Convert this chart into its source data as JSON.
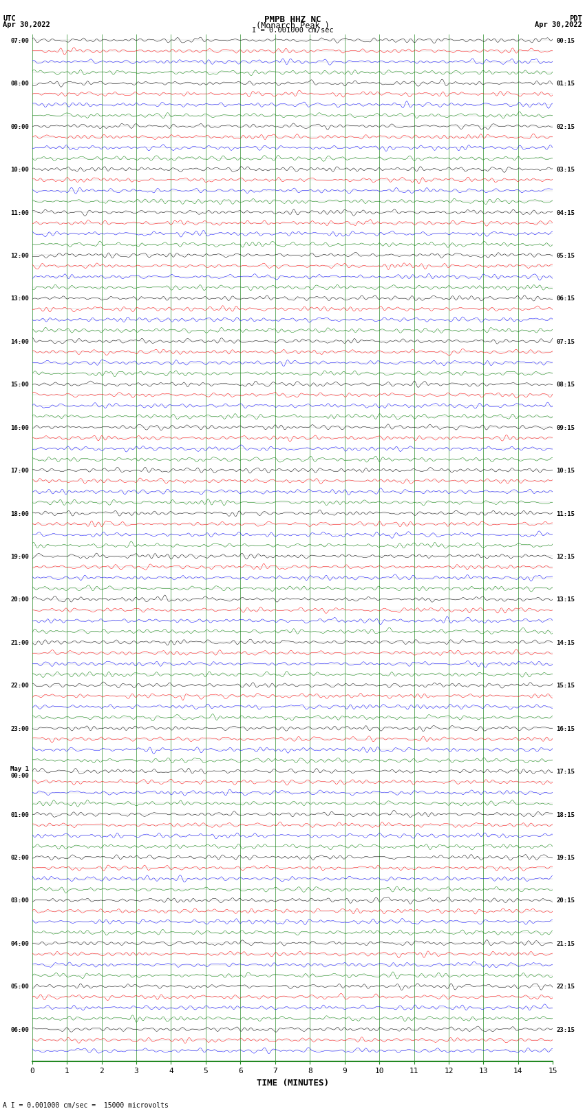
{
  "title_line1": "PMPB HHZ NC",
  "title_line2": "(Monarch Peak )",
  "scale_label": "I = 0.001000 cm/sec",
  "bottom_annotation": "A I = 0.001000 cm/sec =  15000 microvolts",
  "left_label": "UTC",
  "left_date": "Apr 30,2022",
  "right_label": "PDT",
  "right_date": "Apr 30,2022",
  "xlabel": "TIME (MINUTES)",
  "xlim": [
    0,
    15
  ],
  "xticks": [
    0,
    1,
    2,
    3,
    4,
    5,
    6,
    7,
    8,
    9,
    10,
    11,
    12,
    13,
    14,
    15
  ],
  "utc_times": [
    "07:00",
    "",
    "",
    "",
    "08:00",
    "",
    "",
    "",
    "09:00",
    "",
    "",
    "",
    "10:00",
    "",
    "",
    "",
    "11:00",
    "",
    "",
    "",
    "12:00",
    "",
    "",
    "",
    "13:00",
    "",
    "",
    "",
    "14:00",
    "",
    "",
    "",
    "15:00",
    "",
    "",
    "",
    "16:00",
    "",
    "",
    "",
    "17:00",
    "",
    "",
    "",
    "18:00",
    "",
    "",
    "",
    "19:00",
    "",
    "",
    "",
    "20:00",
    "",
    "",
    "",
    "21:00",
    "",
    "",
    "",
    "22:00",
    "",
    "",
    "",
    "23:00",
    "",
    "",
    "",
    "May 1\n00:00",
    "",
    "",
    "",
    "01:00",
    "",
    "",
    "",
    "02:00",
    "",
    "",
    "",
    "03:00",
    "",
    "",
    "",
    "04:00",
    "",
    "",
    "",
    "05:00",
    "",
    "",
    "",
    "06:00",
    "",
    ""
  ],
  "pdt_times": [
    "00:15",
    "",
    "",
    "",
    "01:15",
    "",
    "",
    "",
    "02:15",
    "",
    "",
    "",
    "03:15",
    "",
    "",
    "",
    "04:15",
    "",
    "",
    "",
    "05:15",
    "",
    "",
    "",
    "06:15",
    "",
    "",
    "",
    "07:15",
    "",
    "",
    "",
    "08:15",
    "",
    "",
    "",
    "09:15",
    "",
    "",
    "",
    "10:15",
    "",
    "",
    "",
    "11:15",
    "",
    "",
    "",
    "12:15",
    "",
    "",
    "",
    "13:15",
    "",
    "",
    "",
    "14:15",
    "",
    "",
    "",
    "15:15",
    "",
    "",
    "",
    "16:15",
    "",
    "",
    "",
    "17:15",
    "",
    "",
    "",
    "18:15",
    "",
    "",
    "",
    "19:15",
    "",
    "",
    "",
    "20:15",
    "",
    "",
    "",
    "21:15",
    "",
    "",
    "",
    "22:15",
    "",
    "",
    "",
    "23:15",
    "",
    ""
  ],
  "trace_colors": [
    "black",
    "red",
    "blue",
    "green"
  ],
  "background_color": "white",
  "grid_color": "#999999",
  "noise_amplitude": 0.28,
  "line_width": 0.35,
  "figsize": [
    8.5,
    16.13
  ],
  "dpi": 100
}
